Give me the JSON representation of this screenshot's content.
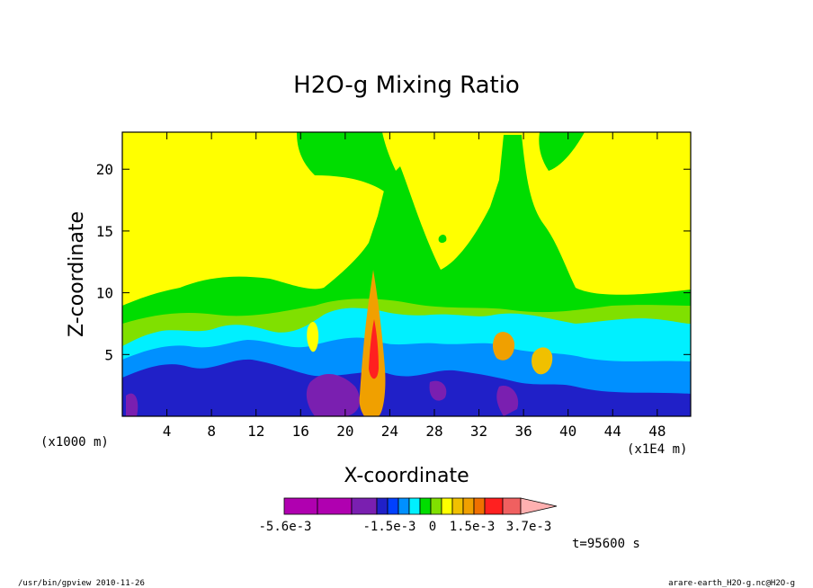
{
  "chart_data": {
    "type": "heatmap",
    "title": "H2O-g Mixing Ratio",
    "xlabel": "X-coordinate",
    "ylabel": "Z-coordinate",
    "x_unit_left": "(x1000 m)",
    "x_unit_right": "(x1E4 m)",
    "xticks": [
      4,
      8,
      12,
      16,
      20,
      24,
      28,
      32,
      36,
      40,
      44,
      48
    ],
    "yticks": [
      5,
      10,
      15,
      20
    ],
    "xlim": [
      0,
      51
    ],
    "ylim": [
      0,
      23
    ],
    "colorbar": {
      "colors": [
        "#b000b0",
        "#b000b0",
        "#7a1fb0",
        "#2020c8",
        "#0040ff",
        "#0090ff",
        "#00f0ff",
        "#00dd00",
        "#80e000",
        "#ffff00",
        "#f0c000",
        "#f0a000",
        "#f07000",
        "#ff2020",
        "#f06060",
        "#ffb0b0"
      ],
      "labels": [
        "-5.6e-3",
        "-1.5e-3",
        "0",
        "1.5e-3",
        "3.7e-3"
      ]
    },
    "time_label": "t=95600 s"
  },
  "footer": {
    "left": "/usr/bin/gpview  2010-11-26",
    "right": "arare-earth_H2O-g.nc@H2O-g"
  }
}
